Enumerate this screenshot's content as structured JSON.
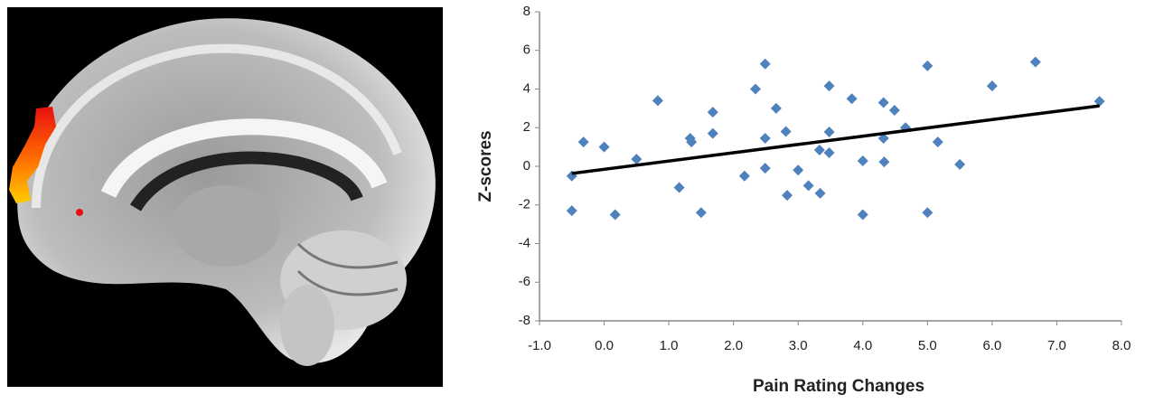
{
  "chart_data": {
    "type": "scatter",
    "xlabel": "Pain Rating Changes",
    "ylabel": "Z-scores",
    "x": [
      -0.5,
      -0.5,
      -0.32,
      0.0,
      0.17,
      0.5,
      0.83,
      1.16,
      1.33,
      1.35,
      1.5,
      1.68,
      1.68,
      2.17,
      2.34,
      2.49,
      2.49,
      2.49,
      2.66,
      2.81,
      2.83,
      3.0,
      3.16,
      3.33,
      3.34,
      3.48,
      3.48,
      3.48,
      3.83,
      4.0,
      4.0,
      4.32,
      4.32,
      4.33,
      4.49,
      4.66,
      5.0,
      5.0,
      5.16,
      5.5,
      6.0,
      6.67,
      7.66
    ],
    "series": [
      {
        "color": "#4f81bd",
        "values": [
          -0.5,
          -2.3,
          1.26,
          1.0,
          -2.5,
          0.37,
          3.4,
          -1.1,
          1.45,
          1.26,
          -2.4,
          2.8,
          1.7,
          -0.5,
          4.0,
          5.3,
          1.45,
          -0.1,
          3.0,
          1.8,
          -1.5,
          -0.2,
          -1.0,
          0.84,
          -1.4,
          4.16,
          1.78,
          0.7,
          3.5,
          0.28,
          -2.5,
          3.3,
          1.45,
          0.23,
          2.9,
          2.0,
          5.2,
          -2.4,
          1.26,
          0.1,
          4.16,
          5.4,
          3.36
        ]
      }
    ],
    "trendline": {
      "color": "#000000",
      "x": [
        -0.5,
        7.66
      ],
      "values": [
        -0.37,
        3.13
      ]
    },
    "xlim": [
      -1,
      8
    ],
    "ylim": [
      -8,
      8
    ],
    "xticks": [
      {
        "value": -1,
        "label": "-1.0"
      },
      {
        "value": 0,
        "label": "0.0"
      },
      {
        "value": 1,
        "label": "1.0"
      },
      {
        "value": 2,
        "label": "2.0"
      },
      {
        "value": 3,
        "label": "3.0"
      },
      {
        "value": 4,
        "label": "4.0"
      },
      {
        "value": 5,
        "label": "5.0"
      },
      {
        "value": 6,
        "label": "6.0"
      },
      {
        "value": 7,
        "label": "7.0"
      },
      {
        "value": 8,
        "label": "8.0"
      }
    ],
    "yticks": [
      -8,
      -6,
      -4,
      -2,
      0,
      2,
      4,
      6,
      8
    ],
    "grid": false
  }
}
